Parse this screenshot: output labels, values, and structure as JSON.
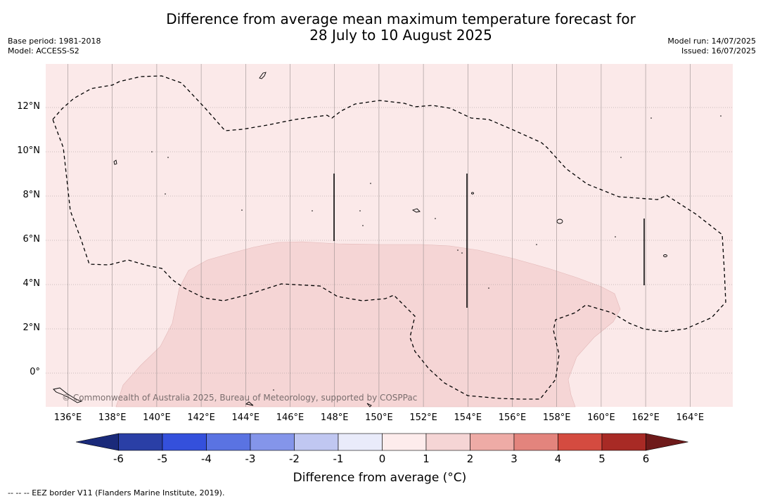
{
  "header": {
    "title_line1": "Difference from average mean maximum temperature forecast for",
    "title_line2": "28 July to 10 August 2025",
    "base_period": "Base period: 1981-2018",
    "model": "Model: ACCESS-S2",
    "model_run": "Model run: 14/07/2025",
    "issued": "Issued: 16/07/2025"
  },
  "map": {
    "lon_labels": [
      "136°E",
      "138°E",
      "140°E",
      "142°E",
      "144°E",
      "146°E",
      "148°E",
      "150°E",
      "152°E",
      "154°E",
      "156°E",
      "158°E",
      "160°E",
      "162°E",
      "164°E"
    ],
    "lat_labels": [
      "12°N",
      "10°N",
      "8°N",
      "6°N",
      "4°N",
      "2°N",
      "0°"
    ],
    "copyright": "© Commonwealth of Australia 2025, Bureau of Meteorology, supported by COSPPac",
    "background_color": "#fbe9e9",
    "anomaly_color": "#f5d5d5"
  },
  "colorbar": {
    "labels": [
      "-6",
      "-5",
      "-4",
      "-3",
      "-2",
      "-1",
      "0",
      "1",
      "2",
      "3",
      "4",
      "5",
      "6"
    ],
    "colors": [
      "#1a2a7a",
      "#2a3fa6",
      "#3450dc",
      "#5a73e2",
      "#8495ea",
      "#c0c7f1",
      "#e9ebfa",
      "#fdecec",
      "#f5d5d5",
      "#eeaba6",
      "#e3847d",
      "#d44b40",
      "#a82a25",
      "#6e1a1a"
    ],
    "title": "Difference from average (°C)"
  },
  "footnote": "--  --  -- EEZ border V11 (Flanders Marine Institute, 2019)."
}
